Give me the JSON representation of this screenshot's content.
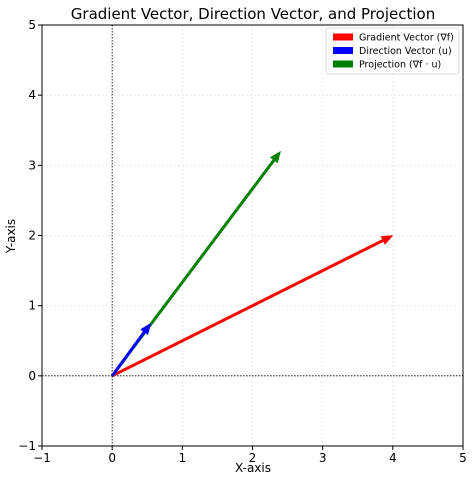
{
  "chart_data": {
    "type": "line",
    "title": "Gradient Vector, Direction Vector, and Projection",
    "xlabel": "X-axis",
    "ylabel": "Y-axis",
    "xlim": [
      -1,
      5
    ],
    "ylim": [
      -1,
      5
    ],
    "xticks": [
      -1,
      0,
      1,
      2,
      3,
      4,
      5
    ],
    "yticks": [
      -1,
      0,
      1,
      2,
      3,
      4,
      5
    ],
    "xtick_labels": [
      "−1",
      "0",
      "1",
      "2",
      "3",
      "4",
      "5"
    ],
    "ytick_labels": [
      "−1",
      "0",
      "1",
      "2",
      "3",
      "4",
      "5"
    ],
    "grid": true,
    "legend_position": "top-right",
    "series": [
      {
        "name": "Gradient Vector (∇f)",
        "color": "#ff0000",
        "start": [
          0,
          0
        ],
        "end": [
          4,
          2
        ]
      },
      {
        "name": "Direction Vector (u)",
        "color": "#0000ff",
        "start": [
          0,
          0
        ],
        "end": [
          0.55,
          0.75
        ]
      },
      {
        "name": "Projection (∇f · u)",
        "color": "#008000",
        "start": [
          0,
          0
        ],
        "end": [
          2.4,
          3.2
        ]
      }
    ]
  }
}
